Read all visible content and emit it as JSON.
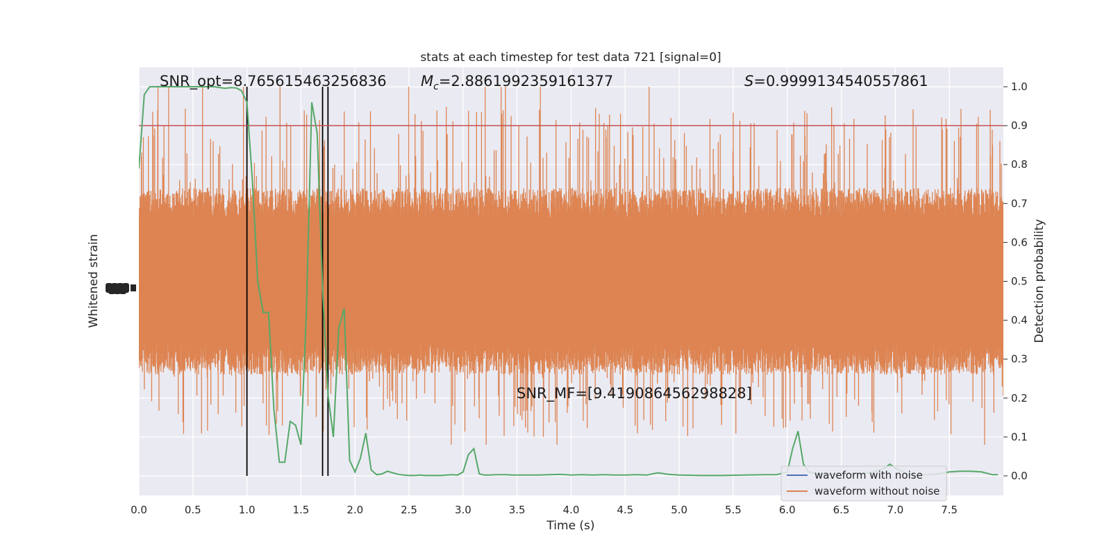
{
  "chart_data": {
    "type": "line",
    "title": "stats at each timestep for test data 721 [signal=0]",
    "xlabel": "Time (s)",
    "ylabel_left": "Whitened strain",
    "ylabel_right": "Detection probability",
    "xlim": [
      0,
      8
    ],
    "ylim_right": [
      -0.05,
      1.05
    ],
    "x_ticks": [
      "0.0",
      "0.5",
      "1.0",
      "1.5",
      "2.0",
      "2.5",
      "3.0",
      "3.5",
      "4.0",
      "4.5",
      "5.0",
      "5.5",
      "6.0",
      "6.5",
      "7.0",
      "7.5"
    ],
    "y_ticks_right": [
      "0.0",
      "0.1",
      "0.2",
      "0.3",
      "0.4",
      "0.5",
      "0.6",
      "0.7",
      "0.8",
      "0.9",
      "1.0"
    ],
    "grid": true,
    "threshold": 0.9,
    "vertical_lines": [
      1.0,
      1.7,
      1.75
    ],
    "annotations": {
      "snr_opt": "SNR_opt=8.765615463256836",
      "mc_symbol": "M",
      "mc_subscript": "c",
      "mc_value": "=2.8861992359161377",
      "s_symbol": "S",
      "s_value": "=0.9999134540557861",
      "snr_mf": "SNR_MF=[9.419086456298828]"
    },
    "legend": {
      "position": "bottom-right",
      "entries": [
        "waveform with noise",
        "waveform without noise"
      ]
    },
    "colors": {
      "background": "#eaeaf2",
      "grid": "#ffffff",
      "strain_noise": "#4c72b0",
      "strain_clean": "#dd8452",
      "probability": "#55a868",
      "threshold": "#c44e52",
      "vlines": "#000000"
    },
    "series": [
      {
        "name": "waveform with noise",
        "x": [],
        "y": []
      },
      {
        "name": "waveform without noise",
        "band_center": 0.5,
        "band_halfwidth": 0.16,
        "peak_high": 1.0,
        "peak_low": 0.0
      },
      {
        "x": [
          0.0,
          0.05,
          0.1,
          0.15,
          0.2,
          0.25,
          0.3,
          0.35,
          0.4,
          0.45,
          0.5,
          0.55,
          0.6,
          0.65,
          0.7,
          0.75,
          0.8,
          0.85,
          0.9,
          0.95,
          1.0,
          1.05,
          1.1,
          1.15,
          1.2,
          1.25,
          1.3,
          1.35,
          1.4,
          1.45,
          1.5,
          1.55,
          1.6,
          1.65,
          1.7,
          1.75,
          1.8,
          1.85,
          1.9,
          1.95,
          2.0,
          2.05,
          2.1,
          2.15,
          2.2,
          2.25,
          2.3,
          2.35,
          2.4,
          2.45,
          2.5,
          2.55,
          2.6,
          2.65,
          2.7,
          2.75,
          2.8,
          2.85,
          2.9,
          2.95,
          3.0,
          3.05,
          3.1,
          3.15,
          3.2,
          3.25,
          3.3,
          3.35,
          3.4,
          3.45,
          3.5,
          3.6,
          3.7,
          3.8,
          3.9,
          4.0,
          4.1,
          4.2,
          4.3,
          4.4,
          4.5,
          4.6,
          4.7,
          4.8,
          4.9,
          5.0,
          5.2,
          5.4,
          5.6,
          5.8,
          5.9,
          6.0,
          6.05,
          6.1,
          6.15,
          6.2,
          6.3,
          6.4,
          6.5,
          6.6,
          6.7,
          6.8,
          6.9,
          6.95,
          7.0,
          7.1,
          7.2,
          7.3,
          7.4,
          7.5,
          7.6,
          7.7,
          7.8,
          7.9,
          7.95
        ],
        "y": [
          0.79,
          0.98,
          1.0,
          1.0,
          1.0,
          1.0,
          1.0,
          1.0,
          1.0,
          1.0,
          1.0,
          1.0,
          1.0,
          1.0,
          1.0,
          0.998,
          0.996,
          0.998,
          0.997,
          0.99,
          0.96,
          0.76,
          0.5,
          0.42,
          0.42,
          0.17,
          0.035,
          0.035,
          0.14,
          0.13,
          0.08,
          0.42,
          0.96,
          0.88,
          0.48,
          0.21,
          0.1,
          0.38,
          0.43,
          0.04,
          0.01,
          0.045,
          0.11,
          0.015,
          0.003,
          0.005,
          0.012,
          0.008,
          0.004,
          0.002,
          0.001,
          0.001,
          0.002,
          0.001,
          0.001,
          0.001,
          0.001,
          0.002,
          0.003,
          0.002,
          0.01,
          0.055,
          0.07,
          0.005,
          0.002,
          0.002,
          0.003,
          0.003,
          0.003,
          0.002,
          0.002,
          0.002,
          0.002,
          0.003,
          0.004,
          0.002,
          0.003,
          0.002,
          0.003,
          0.002,
          0.002,
          0.003,
          0.002,
          0.008,
          0.004,
          0.002,
          0.001,
          0.001,
          0.002,
          0.003,
          0.003,
          0.01,
          0.07,
          0.115,
          0.03,
          0.01,
          0.005,
          0.004,
          0.004,
          0.005,
          0.006,
          0.01,
          0.02,
          0.03,
          0.02,
          0.006,
          0.002,
          0.003,
          0.005,
          0.01,
          0.012,
          0.012,
          0.01,
          0.003,
          0.003
        ]
      }
    ]
  }
}
